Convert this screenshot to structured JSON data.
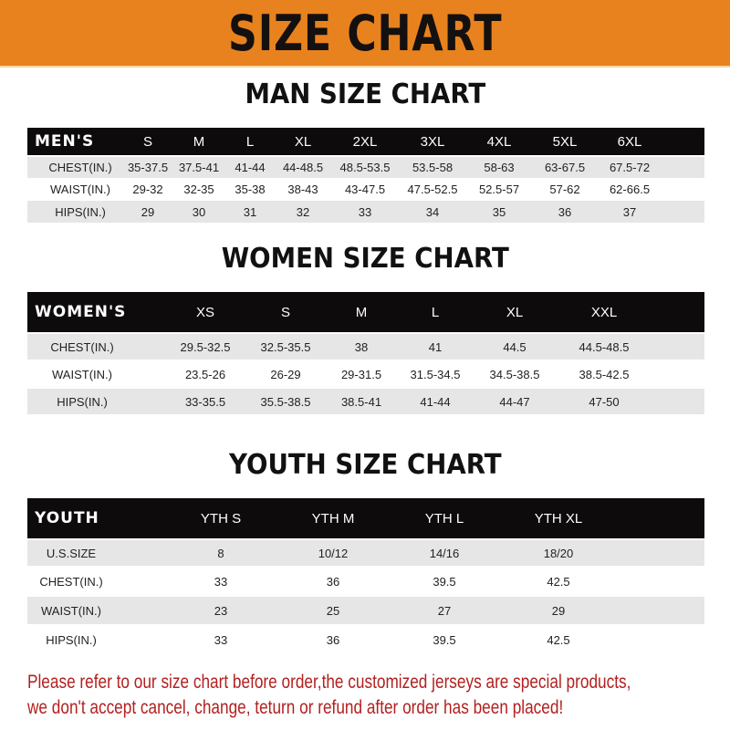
{
  "banner": {
    "title": "SIZE CHART",
    "color": "#E8821E"
  },
  "men": {
    "title": "MAN SIZE CHART",
    "header": "MEN'S",
    "sizes": [
      "S",
      "M",
      "L",
      "XL",
      "2XL",
      "3XL",
      "4XL",
      "5XL",
      "6XL"
    ],
    "rows": [
      {
        "label": "CHEST(IN.)",
        "values": [
          "35-37.5",
          "37.5-41",
          "41-44",
          "44-48.5",
          "48.5-53.5",
          "53.5-58",
          "58-63",
          "63-67.5",
          "67.5-72"
        ]
      },
      {
        "label": "WAIST(IN.)",
        "values": [
          "29-32",
          "32-35",
          "35-38",
          "38-43",
          "43-47.5",
          "47.5-52.5",
          "52.5-57",
          "57-62",
          "62-66.5"
        ]
      },
      {
        "label": "HIPS(IN.)",
        "values": [
          "29",
          "30",
          "31",
          "32",
          "33",
          "34",
          "35",
          "36",
          "37"
        ]
      }
    ]
  },
  "women": {
    "title": "WOMEN SIZE CHART",
    "header": "WOMEN'S",
    "sizes": [
      "XS",
      "S",
      "M",
      "L",
      "XL",
      "XXL"
    ],
    "rows": [
      {
        "label": "CHEST(IN.)",
        "values": [
          "29.5-32.5",
          "32.5-35.5",
          "38",
          "41",
          "44.5",
          "44.5-48.5"
        ]
      },
      {
        "label": "WAIST(IN.)",
        "values": [
          "23.5-26",
          "26-29",
          "29-31.5",
          "31.5-34.5",
          "34.5-38.5",
          "38.5-42.5"
        ]
      },
      {
        "label": "HIPS(IN.)",
        "values": [
          "33-35.5",
          "35.5-38.5",
          "38.5-41",
          "41-44",
          "44-47",
          "47-50"
        ]
      }
    ]
  },
  "youth": {
    "title": "YOUTH SIZE CHART",
    "header": "YOUTH",
    "sizes": [
      "YTH S",
      "YTH M",
      "YTH L",
      "YTH XL"
    ],
    "rows": [
      {
        "label": "U.S.SIZE",
        "values": [
          "8",
          "10/12",
          "14/16",
          "18/20"
        ]
      },
      {
        "label": "CHEST(IN.)",
        "values": [
          "33",
          "36",
          "39.5",
          "42.5"
        ]
      },
      {
        "label": "WAIST(IN.)",
        "values": [
          "23",
          "25",
          "27",
          "29"
        ]
      },
      {
        "label": "HIPS(IN.)",
        "values": [
          "33",
          "36",
          "39.5",
          "42.5"
        ]
      }
    ]
  },
  "footer": {
    "line1": "Please refer to our size chart before order,the customized jerseys are special products,",
    "line2": "we don't accept cancel, change, teturn or refund after order has been placed!",
    "color": "#B32020"
  }
}
